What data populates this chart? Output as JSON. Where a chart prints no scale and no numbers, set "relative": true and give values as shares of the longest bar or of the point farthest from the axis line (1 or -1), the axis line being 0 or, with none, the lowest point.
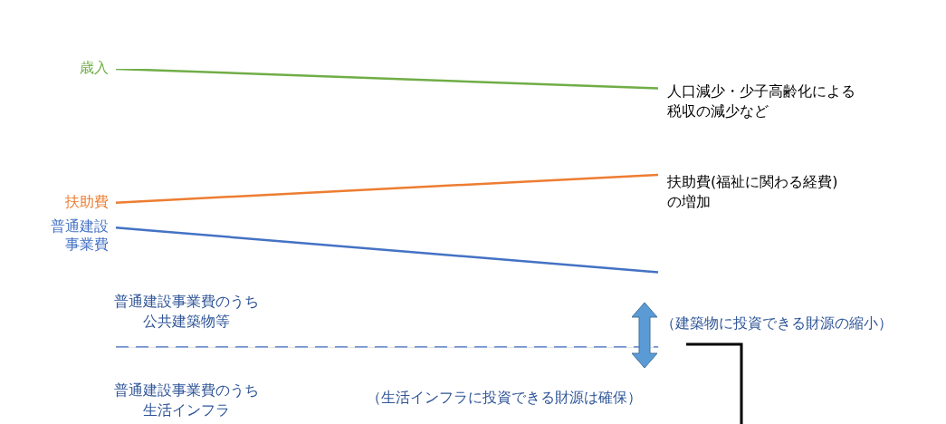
{
  "chart_data": {
    "type": "line",
    "relative": true,
    "categories": [
      null,
      null
    ],
    "marker": "none",
    "legend": false,
    "line_style": "solid",
    "series": [
      {
        "name": "歳入",
        "color": "#70ad47",
        "values": [
          1,
          0.93
        ]
      },
      {
        "name": "扶助費",
        "color": "#ed7d31",
        "values": [
          0.52,
          0.62
        ]
      },
      {
        "name": "普通建設事業費",
        "color": "#4472c4",
        "values": [
          0.43,
          0.27
        ]
      },
      {
        "color": "#4472c4",
        "values": [
          0,
          0
        ],
        "line_style": "dashed"
      }
    ],
    "annotations": [
      "人口減少・少子高齢化による税収の減少など",
      "扶助費(福祉に関わる経費)の増加",
      "普通建設事業費のうち公共建築物等",
      "（建築物に投資できる財源の縮小）",
      "普通建設事業費のうち生活インフラ",
      "（生活インフラに投資できる財源は確保）"
    ]
  }
}
